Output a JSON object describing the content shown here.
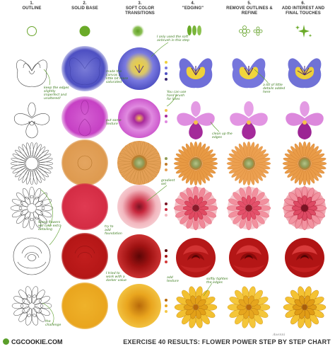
{
  "headers": [
    {
      "num": "1.",
      "text": "OUTLINE"
    },
    {
      "num": "2.",
      "text": "SOLID BASE"
    },
    {
      "num": "3.",
      "text": "SOFT COLOR TRANSITIONS"
    },
    {
      "num": "4.",
      "text": "\"EDGING\""
    },
    {
      "num": "5.",
      "text": "REMOVE OUTLINES & REFINE"
    },
    {
      "num": "6.",
      "text": "ADD INTEREST AND FINAL TOUCHES"
    }
  ],
  "notes": {
    "pansy_a": "keep the edges slightly imperfect and unaltered!",
    "pansy_b": "I only used the soft airbrush in this step",
    "pansy_c": "made the canvas a little bit more saturated",
    "pansy_d": "a lot of little details added here",
    "orchid_a": "You can use hard brush for lines",
    "orchid_b": "put some texture",
    "gerbera_a": "clean up the edges",
    "dahlia_a": "gradient set",
    "dahlia_b": "Some flowers will take extra detailing",
    "dahlia_c": "try to add foundation",
    "rose_a": "I tried to work with a darker value",
    "rose_b": "softly tighten the edges",
    "marigold_a": "add texture",
    "marigold_b": "the challenge"
  },
  "brand": "CGCOOKIE.COM",
  "title": "EXERCISE 40 RESULTS: FLOWER POWER STEP BY STEP CHART",
  "signature": "Avenni"
}
